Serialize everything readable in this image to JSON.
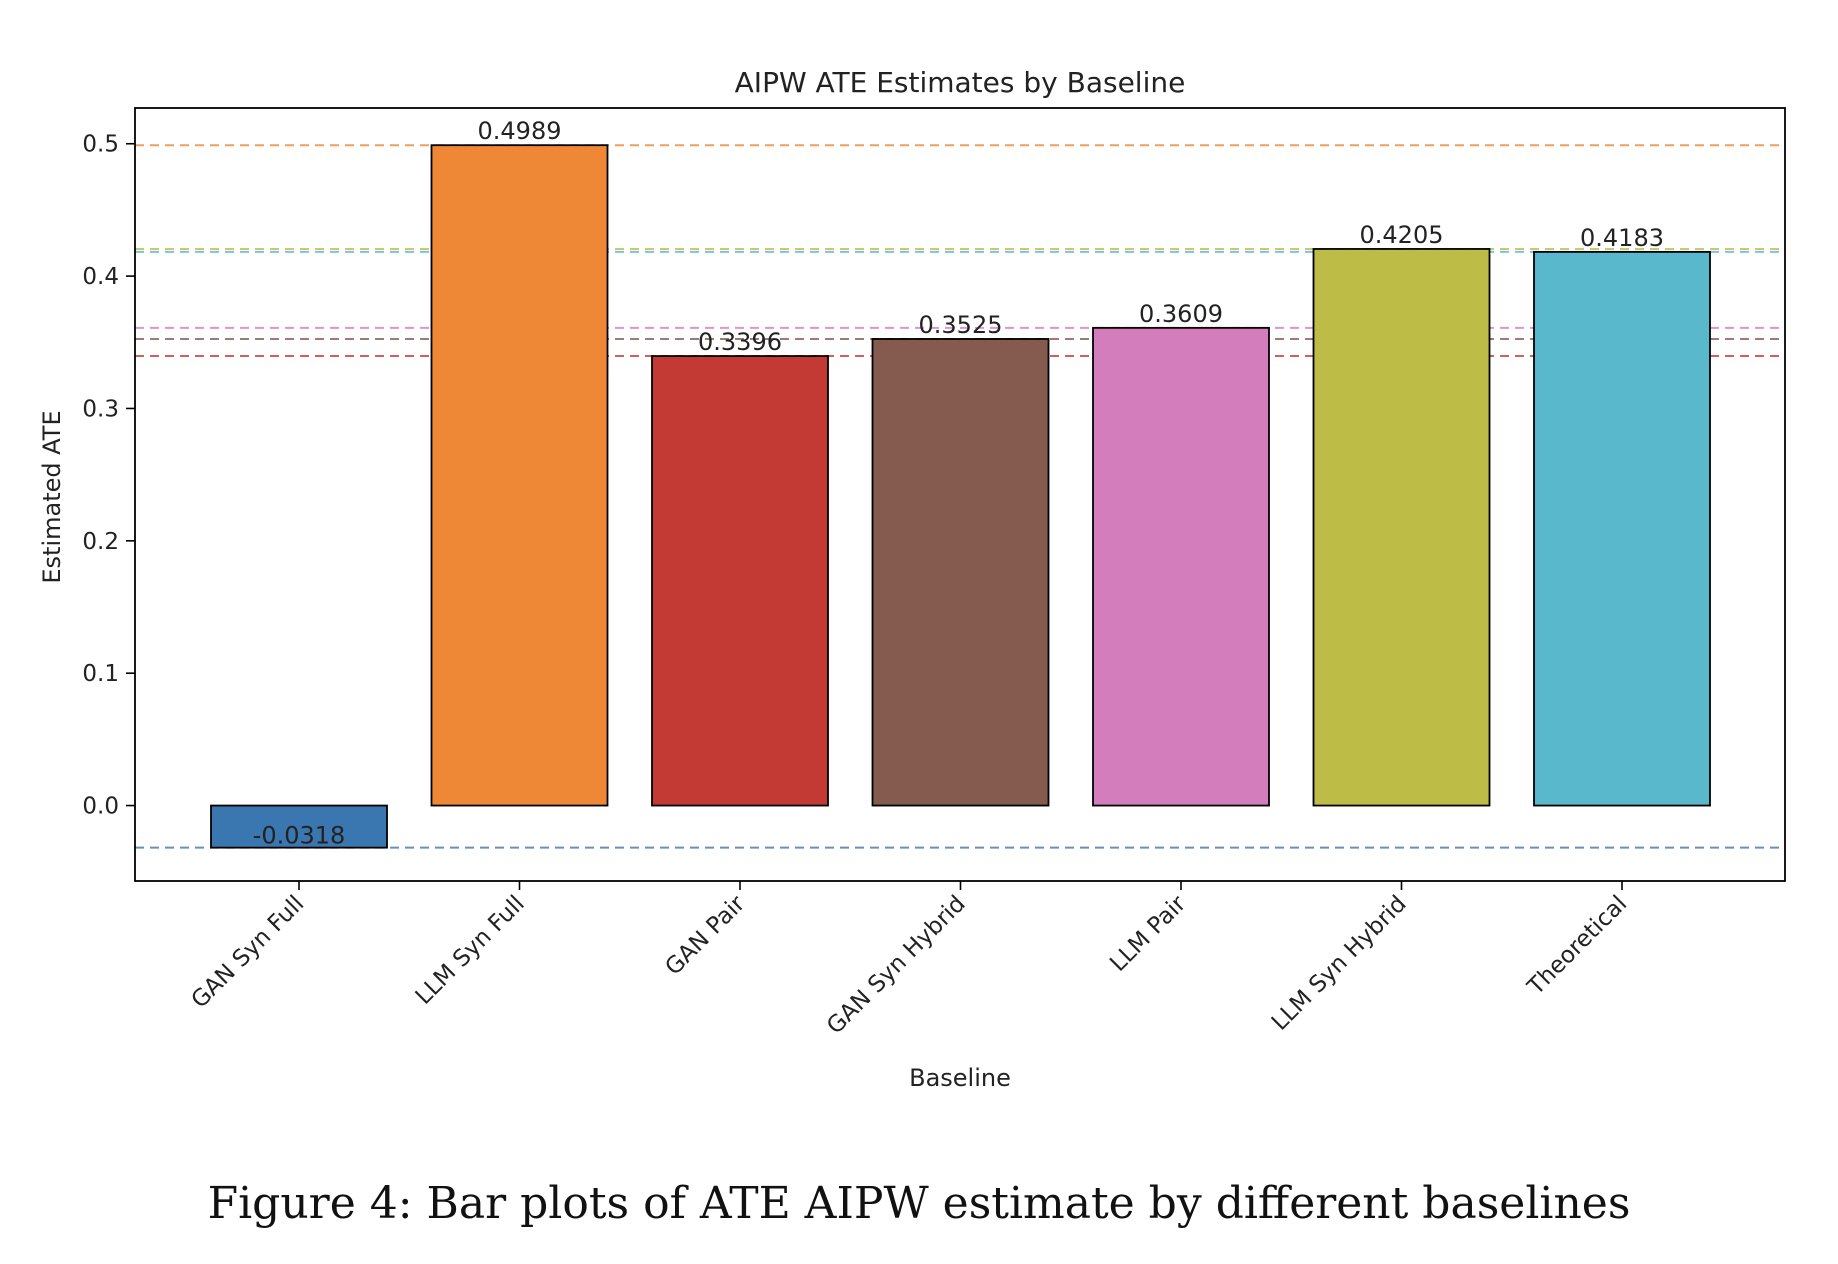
{
  "chart_data": {
    "type": "bar",
    "title": "AIPW ATE Estimates by Baseline",
    "xlabel": "Baseline",
    "ylabel": "Estimated ATE",
    "ylim": [
      -0.057,
      0.527
    ],
    "yticks": [
      "0.0",
      "0.1",
      "0.2",
      "0.3",
      "0.4",
      "0.5"
    ],
    "ytick_values": [
      0.0,
      0.1,
      0.2,
      0.3,
      0.4,
      0.5
    ],
    "categories": [
      "GAN Syn Full",
      "LLM Syn Full",
      "GAN Pair",
      "GAN Syn Hybrid",
      "LLM Pair",
      "LLM Syn Hybrid",
      "Theoretical"
    ],
    "values": [
      -0.0318,
      0.4989,
      0.3396,
      0.3525,
      0.3609,
      0.4205,
      0.4183
    ],
    "value_labels": [
      "-0.0318",
      "0.4989",
      "0.3396",
      "0.3525",
      "0.3609",
      "0.4205",
      "0.4183"
    ],
    "colors": [
      "#3a76b0",
      "#ee8837",
      "#c23a33",
      "#855a4f",
      "#d47dbd",
      "#bdbc47",
      "#5ab8cc"
    ],
    "reference_lines": "dashed horizontal line at each bar value, in the bar color",
    "grid": false,
    "legend": "none"
  },
  "caption": "Figure 4: Bar plots of ATE AIPW estimate by different baselines"
}
